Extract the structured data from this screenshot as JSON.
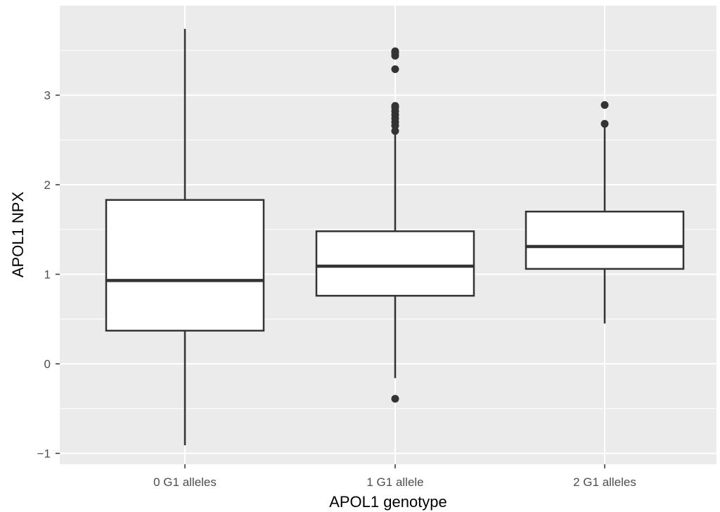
{
  "chart_data": {
    "type": "boxplot",
    "title": "",
    "xlabel": "APOL1 genotype",
    "ylabel": "APOL1 NPX",
    "ylim": [
      -1.1,
      3.95
    ],
    "y_ticks": [
      -1,
      0,
      1,
      2,
      3
    ],
    "y_tick_labels": [
      "−1",
      "0",
      "1",
      "2",
      "3"
    ],
    "y_minor_grid": [
      -0.5,
      0.5,
      1.5,
      2.5,
      3.5
    ],
    "grid": true,
    "panel_background": "#ebebeb",
    "grid_color": "#ffffff",
    "box_fill": "#ffffff",
    "line_color": "#333333",
    "categories": [
      "0 G1 alleles",
      "1 G1 allele",
      "2 G1 alleles"
    ],
    "boxes": [
      {
        "category": "0 G1 alleles",
        "whisker_low": -0.91,
        "q1": 0.37,
        "median": 0.93,
        "q3": 1.83,
        "whisker_high": 3.74,
        "outliers": []
      },
      {
        "category": "1 G1 allele",
        "whisker_low": -0.16,
        "q1": 0.76,
        "median": 1.09,
        "q3": 1.48,
        "whisker_high": 2.58,
        "outliers": [
          -0.39,
          2.6,
          2.66,
          2.7,
          2.74,
          2.78,
          2.82,
          2.86,
          2.88,
          3.29,
          3.44,
          3.47,
          3.49
        ]
      },
      {
        "category": "2 G1 alleles",
        "whisker_low": 0.45,
        "q1": 1.06,
        "median": 1.31,
        "q3": 1.7,
        "whisker_high": 2.64,
        "outliers": [
          2.68,
          2.89
        ]
      }
    ]
  }
}
